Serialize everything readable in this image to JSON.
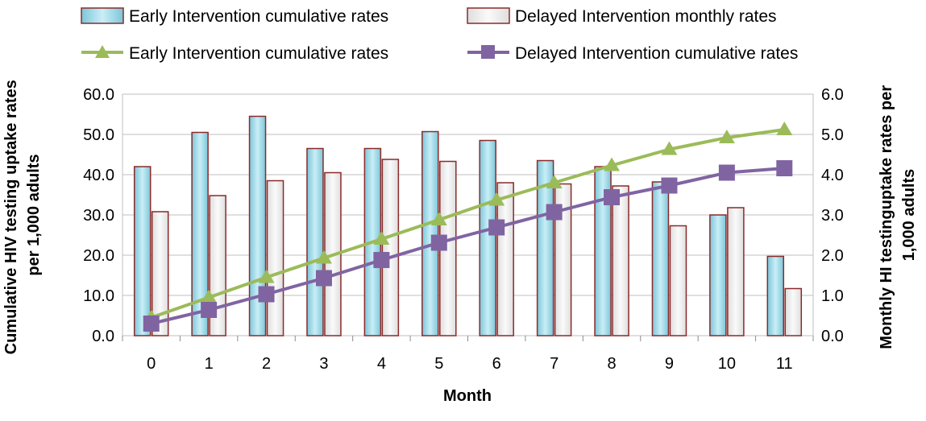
{
  "chart_data": {
    "type": "bar",
    "title": "",
    "xlabel": "Month",
    "ylabel": "Cumulative HIV testing uptake rates per 1,000 adults",
    "ylabel_lines": [
      "Cumulative HIV testing uptake rates",
      "per 1,000 adults"
    ],
    "y2label": "Monthly HI testinguptake rates per 1,000 adults",
    "y2label_lines": [
      "Monthly HI testinguptake rates per",
      "1,000 adults"
    ],
    "ylim": [
      0,
      60
    ],
    "y2lim": [
      0,
      6
    ],
    "yticks": [
      "0.0",
      "10.0",
      "20.0",
      "30.0",
      "40.0",
      "50.0",
      "60.0"
    ],
    "y2ticks": [
      "0.0",
      "1.0",
      "2.0",
      "3.0",
      "4.0",
      "5.0",
      "6.0"
    ],
    "categories": [
      "0",
      "1",
      "2",
      "3",
      "4",
      "5",
      "6",
      "7",
      "8",
      "9",
      "10",
      "11"
    ],
    "grid": "horizontal",
    "legend_position": "top",
    "bar_series": [
      {
        "name": "Early Intervention cumulative rates",
        "axis": "right",
        "color": "#9fd8e6",
        "edge": "#8b2a2a",
        "values": [
          4.2,
          5.05,
          5.45,
          4.65,
          4.65,
          5.07,
          4.85,
          4.35,
          4.2,
          3.82,
          3.0,
          1.97
        ]
      },
      {
        "name": "Delayed Intervention monthly rates",
        "axis": "right",
        "color": "#ececec",
        "edge": "#8b2a2a",
        "values": [
          3.08,
          3.48,
          3.85,
          4.05,
          4.38,
          4.33,
          3.8,
          3.77,
          3.72,
          2.73,
          3.18,
          1.17
        ]
      }
    ],
    "line_series": [
      {
        "name": "Early Intervention cumulative rates",
        "axis": "left",
        "color": "#9bbb59",
        "marker": "triangle",
        "values": [
          4.5,
          9.5,
          14.5,
          19.3,
          24.0,
          28.8,
          33.7,
          38.0,
          42.3,
          46.3,
          49.2,
          51.2
        ]
      },
      {
        "name": "Delayed Intervention cumulative rates",
        "axis": "left",
        "color": "#8064a2",
        "marker": "square",
        "values": [
          3.0,
          6.4,
          10.3,
          14.3,
          18.8,
          23.1,
          26.9,
          30.7,
          34.4,
          37.3,
          40.5,
          41.6
        ]
      }
    ]
  }
}
